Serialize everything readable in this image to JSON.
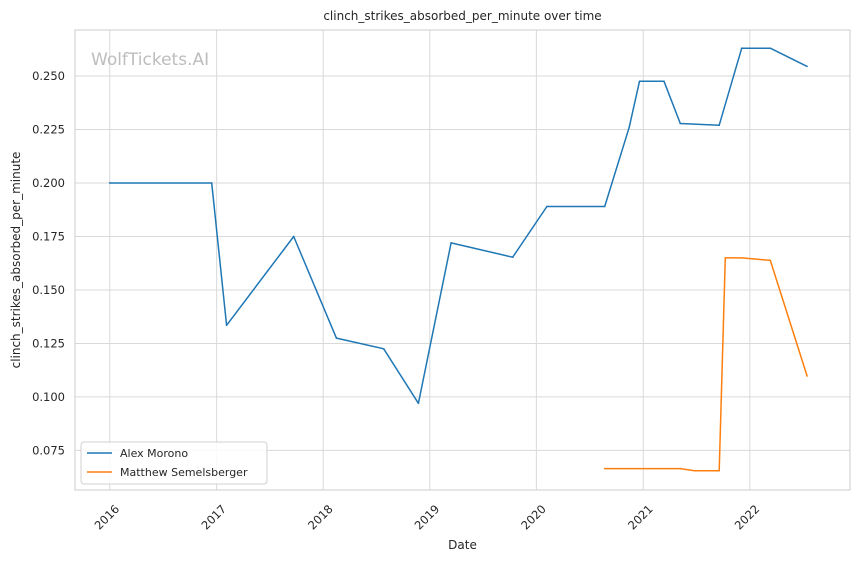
{
  "chart_data": {
    "type": "line",
    "title": "clinch_strikes_absorbed_per_minute over time",
    "xlabel": "Date",
    "ylabel": "clinch_strikes_absorbed_per_minute",
    "watermark": "WolfTickets.AI",
    "x_ticks": [
      "2016",
      "2017",
      "2018",
      "2019",
      "2020",
      "2021",
      "2022"
    ],
    "y_ticks": [
      "0.075",
      "0.100",
      "0.125",
      "0.150",
      "0.175",
      "0.200",
      "0.225",
      "0.250"
    ],
    "xlim": [
      "2015-09-04",
      "2022-12-10"
    ],
    "ylim": [
      0.0565,
      0.2715
    ],
    "grid": true,
    "legend_position": "lower-left",
    "colors": {
      "Alex Morono": "#1f77b4",
      "Matthew Semelsberger": "#ff7f0e",
      "grid": "#d9d9d9",
      "axes": "#cccccc"
    },
    "series": [
      {
        "name": "Alex Morono",
        "points": [
          [
            "2016-01-01",
            0.2
          ],
          [
            "2016-12-15",
            0.2
          ],
          [
            "2017-02-04",
            0.1335
          ],
          [
            "2017-09-22",
            0.175
          ],
          [
            "2018-02-15",
            0.1275
          ],
          [
            "2018-07-27",
            0.1225
          ],
          [
            "2018-11-23",
            0.097
          ],
          [
            "2019-03-15",
            0.172
          ],
          [
            "2019-10-12",
            0.1653
          ],
          [
            "2020-02-06",
            0.189
          ],
          [
            "2020-08-22",
            0.189
          ],
          [
            "2020-11-14",
            0.226
          ],
          [
            "2020-12-19",
            0.2475
          ],
          [
            "2021-03-13",
            0.2475
          ],
          [
            "2021-05-08",
            0.2278
          ],
          [
            "2021-09-18",
            0.227
          ],
          [
            "2021-12-04",
            0.263
          ],
          [
            "2022-03-12",
            0.263
          ],
          [
            "2022-07-16",
            0.2545
          ]
        ]
      },
      {
        "name": "Matthew Semelsberger",
        "points": [
          [
            "2020-08-22",
            0.0665
          ],
          [
            "2021-05-08",
            0.0665
          ],
          [
            "2021-06-26",
            0.0655
          ],
          [
            "2021-09-18",
            0.0655
          ],
          [
            "2021-10-09",
            0.165
          ],
          [
            "2021-12-04",
            0.165
          ],
          [
            "2022-03-12",
            0.1638
          ],
          [
            "2022-07-16",
            0.1098
          ]
        ]
      }
    ]
  }
}
